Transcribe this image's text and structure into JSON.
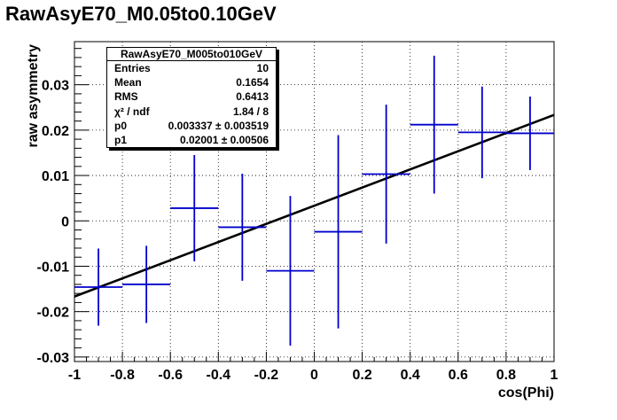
{
  "page": {
    "title": "RawAsyE70_M0.05to0.10GeV"
  },
  "stats": {
    "header": "RawAsyE70_M005to010GeV",
    "rows": [
      {
        "name": "Entries",
        "value": "10"
      },
      {
        "name": "Mean",
        "value": "0.1654"
      },
      {
        "name": "RMS",
        "value": "0.6413"
      },
      {
        "name": "χ² / ndf",
        "value": "1.84 / 8"
      },
      {
        "name": "p0",
        "value": "0.003337 ± 0.003519"
      },
      {
        "name": "p1",
        "value": "0.02001 ± 0.00506"
      }
    ]
  },
  "colors": {
    "points": "#0000cc",
    "fit": "#000000",
    "frame": "#000000",
    "grid": "#000000"
  },
  "chart_data": {
    "type": "scatter",
    "xlabel": "cos(Phi)",
    "ylabel": "raw asymmetry",
    "xlim": [
      -1,
      1
    ],
    "ylim": [
      -0.031,
      0.0395
    ],
    "grid": true,
    "xticks": [
      -1,
      -0.8,
      -0.6,
      -0.4,
      -0.2,
      0,
      0.2,
      0.4,
      0.6,
      0.8,
      1
    ],
    "xtick_labels": [
      "-1",
      "-0.8",
      "-0.6",
      "-0.4",
      "-0.2",
      "0",
      "0.2",
      "0.4",
      "0.6",
      "0.8",
      "1"
    ],
    "yticks": [
      -0.03,
      -0.02,
      -0.01,
      0,
      0.01,
      0.02,
      0.03
    ],
    "ytick_labels": [
      "-0.03",
      "-0.02",
      "-0.01",
      "0",
      "0.01",
      "0.02",
      "0.03"
    ],
    "series": [
      {
        "type": "errorbar",
        "x": [
          -0.9,
          -0.7,
          -0.5,
          -0.3,
          -0.1,
          0.1,
          0.3,
          0.5,
          0.7,
          0.9
        ],
        "xerr": 0.1,
        "y": [
          -0.0146,
          -0.014,
          0.0028,
          -0.0014,
          -0.011,
          -0.0024,
          0.0103,
          0.0212,
          0.0195,
          0.0193
        ],
        "yerr": [
          0.0085,
          0.0085,
          0.0117,
          0.0118,
          0.0165,
          0.0213,
          0.0153,
          0.0152,
          0.0101,
          0.0081
        ]
      },
      {
        "type": "fit-line",
        "p0": 0.003337,
        "p1": 0.02001,
        "x": [
          -1,
          1
        ]
      }
    ]
  }
}
